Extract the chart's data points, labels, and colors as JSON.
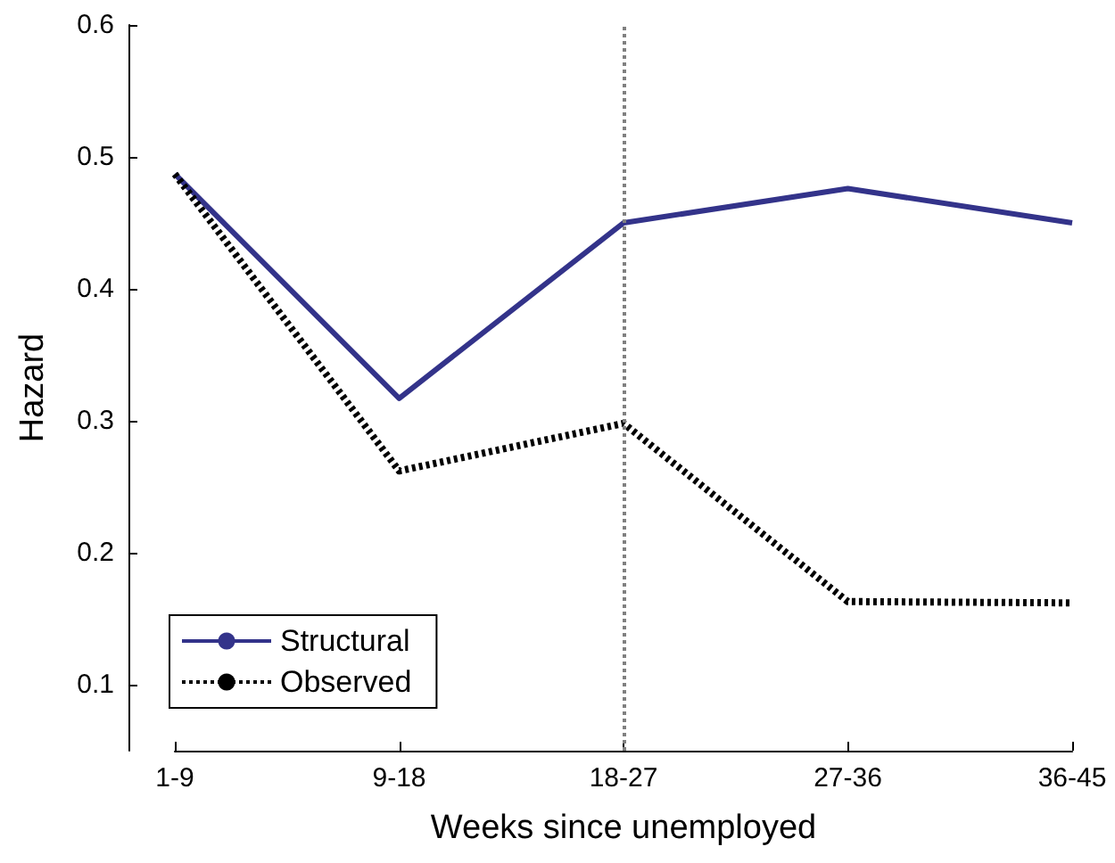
{
  "chart_data": {
    "type": "line",
    "xlabel": "Weeks since unemployed",
    "ylabel": "Hazard",
    "categories": [
      "1-9",
      "9-18",
      "18-27",
      "27-36",
      "36-45"
    ],
    "series": [
      {
        "name": "Structural",
        "color": "#33338a",
        "values": [
          0.487,
          0.317,
          0.45,
          0.476,
          0.45
        ],
        "line_style": "solid"
      },
      {
        "name": "Observed",
        "color": "#000000",
        "values": [
          0.487,
          0.262,
          0.298,
          0.163,
          0.162
        ],
        "line_style": "dotted"
      }
    ],
    "ylim": [
      0.05,
      0.6
    ],
    "yticks": [
      0.1,
      0.2,
      0.3,
      0.4,
      0.5,
      0.6
    ],
    "ref_lines": [
      {
        "axis": "x",
        "value": "18-27",
        "color": "#808080",
        "line_style": "dotted"
      }
    ],
    "grid": false,
    "legend": "bottom left",
    "marker": "none"
  }
}
